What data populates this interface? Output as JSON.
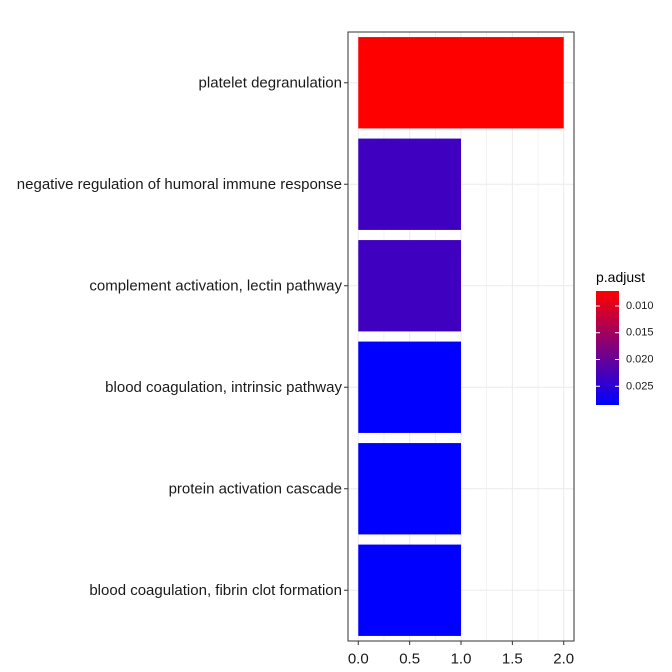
{
  "chart_data": {
    "type": "bar",
    "orientation": "horizontal",
    "categories": [
      "platelet degranulation",
      "negative regulation of humoral immune response",
      "complement activation, lectin pathway",
      "blood coagulation, intrinsic pathway",
      "protein activation cascade",
      "blood coagulation, fibrin clot formation"
    ],
    "values": [
      2,
      1,
      1,
      1,
      1,
      1
    ],
    "p_adjust": [
      0.0072,
      0.0232,
      0.0232,
      0.0285,
      0.0285,
      0.0285
    ],
    "xlim": [
      -0.1,
      2.1
    ],
    "xticks": [
      0,
      0.5,
      1,
      1.5,
      2
    ],
    "xtick_labels": [
      "0.0",
      "0.5",
      "1.0",
      "1.5",
      "2.0"
    ],
    "grid": true,
    "legend": {
      "title": "p.adjust",
      "placement": "right",
      "range": [
        0.0072,
        0.0285
      ],
      "ticks": [
        0.01,
        0.015,
        0.02,
        0.025
      ],
      "tick_labels": [
        "0.010",
        "0.015",
        "0.020",
        "0.025"
      ],
      "color_low": "#FF0000",
      "color_high": "#0000FF"
    }
  }
}
